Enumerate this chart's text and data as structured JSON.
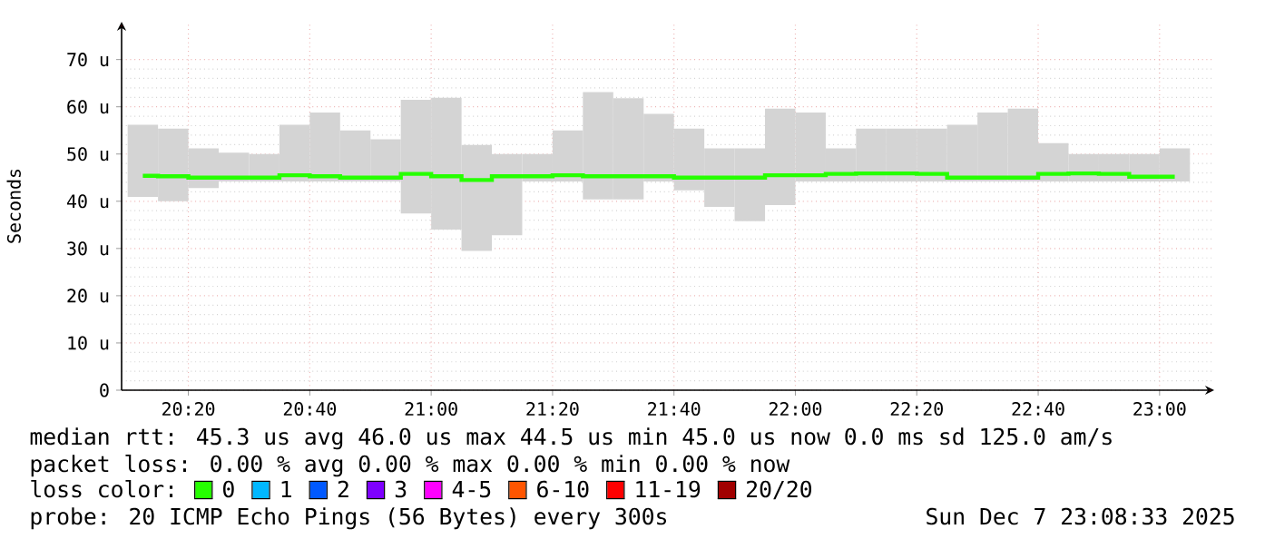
{
  "chart_data": {
    "type": "bar",
    "ylabel": "Seconds",
    "x": [
      20.2083,
      20.2917,
      20.375,
      20.4583,
      20.5417,
      20.625,
      20.7083,
      20.7917,
      20.875,
      20.9583,
      21.0417,
      21.125,
      21.2083,
      21.2917,
      21.375,
      21.4583,
      21.5417,
      21.625,
      21.7083,
      21.7917,
      21.875,
      21.9583,
      22.0417,
      22.125,
      22.2083,
      22.2917,
      22.375,
      22.4583,
      22.5417,
      22.625,
      22.7083,
      22.7917,
      22.875,
      22.9583,
      23.0417
    ],
    "series": [
      {
        "color": "#d4d4d4",
        "base": [
          40.9,
          40.0,
          42.8,
          44.2,
          44.2,
          44.2,
          44.2,
          44.2,
          44.2,
          37.4,
          34.0,
          29.5,
          32.8,
          44.2,
          44.2,
          40.4,
          40.4,
          44.2,
          42.3,
          38.8,
          35.8,
          39.2,
          44.2,
          44.2,
          44.2,
          44.2,
          44.2,
          44.2,
          44.2,
          44.2,
          44.2,
          44.2,
          44.2,
          44.2,
          44.2
        ],
        "values": [
          15.3,
          15.4,
          8.4,
          6.1,
          5.8,
          12.0,
          14.6,
          10.8,
          8.9,
          24.1,
          27.9,
          22.4,
          17.2,
          5.8,
          10.8,
          22.7,
          21.4,
          14.3,
          13.1,
          12.4,
          15.4,
          20.4,
          14.6,
          7.0,
          11.2,
          11.2,
          11.2,
          12.0,
          14.6,
          15.4,
          8.1,
          5.8,
          5.8,
          5.8,
          7.0
        ]
      },
      {
        "type": "step",
        "name": "0",
        "color": "#26ff00",
        "values": [
          45.4,
          45.3,
          45.0,
          45.0,
          45.0,
          45.5,
          45.3,
          45.0,
          45.0,
          45.8,
          45.3,
          44.5,
          45.3,
          45.3,
          45.5,
          45.3,
          45.3,
          45.3,
          45.0,
          45.0,
          45.0,
          45.5,
          45.5,
          45.8,
          45.9,
          45.9,
          45.8,
          45.0,
          45.0,
          45.0,
          45.8,
          45.9,
          45.8,
          45.2,
          45.2
        ]
      },
      {
        "type": "step",
        "name": "1",
        "color": "#00b8ff",
        "values": [
          null,
          null,
          null,
          null,
          null,
          null,
          null,
          null,
          null,
          null,
          null,
          null,
          null,
          null,
          null,
          null,
          null,
          null,
          null,
          null,
          null,
          null,
          null,
          null,
          null,
          null,
          null,
          null,
          null,
          null,
          null,
          null,
          null,
          null,
          null
        ]
      },
      {
        "type": "step",
        "name": "2",
        "color": "#0059ff",
        "values": [
          null,
          null,
          null,
          null,
          null,
          null,
          null,
          null,
          null,
          null,
          null,
          null,
          null,
          null,
          null,
          null,
          null,
          null,
          null,
          null,
          null,
          null,
          null,
          null,
          null,
          null,
          null,
          null,
          null,
          null,
          null,
          null,
          null,
          null,
          null
        ]
      },
      {
        "type": "step",
        "name": "3",
        "color": "#7e00ff",
        "values": [
          null,
          null,
          null,
          null,
          null,
          null,
          null,
          null,
          null,
          null,
          null,
          null,
          null,
          null,
          null,
          null,
          null,
          null,
          null,
          null,
          null,
          null,
          null,
          null,
          null,
          null,
          null,
          null,
          null,
          null,
          null,
          null,
          null,
          null,
          null
        ]
      },
      {
        "type": "step",
        "name": "4-5",
        "color": "#ff00ff",
        "values": [
          null,
          null,
          null,
          null,
          null,
          null,
          null,
          null,
          null,
          null,
          null,
          null,
          null,
          null,
          null,
          null,
          null,
          null,
          null,
          null,
          null,
          null,
          null,
          null,
          null,
          null,
          null,
          null,
          null,
          null,
          null,
          null,
          null,
          null,
          null
        ]
      },
      {
        "type": "step",
        "name": "6-10",
        "color": "#ff5500",
        "values": [
          null,
          null,
          null,
          null,
          null,
          null,
          null,
          null,
          null,
          null,
          null,
          null,
          null,
          null,
          null,
          null,
          null,
          null,
          null,
          null,
          null,
          null,
          null,
          null,
          null,
          null,
          null,
          null,
          null,
          null,
          null,
          null,
          null,
          null,
          null
        ]
      },
      {
        "type": "step",
        "name": "11-19",
        "color": "#ff0000",
        "values": [
          null,
          null,
          null,
          null,
          null,
          null,
          null,
          null,
          null,
          null,
          null,
          null,
          null,
          null,
          null,
          null,
          null,
          null,
          null,
          null,
          null,
          null,
          null,
          null,
          null,
          null,
          null,
          null,
          null,
          null,
          null,
          null,
          null,
          null,
          null
        ]
      },
      {
        "type": "step",
        "name": "20/20",
        "color": "#a10000",
        "values": [
          null,
          null,
          null,
          null,
          null,
          null,
          null,
          null,
          null,
          null,
          null,
          null,
          null,
          null,
          null,
          null,
          null,
          null,
          null,
          null,
          null,
          null,
          null,
          null,
          null,
          null,
          null,
          null,
          null,
          null,
          null,
          null,
          null,
          null,
          null
        ]
      }
    ],
    "xlim": [
      20.15,
      23.15
    ],
    "xticks": [
      {
        "value": 20.3333,
        "label": "20:20"
      },
      {
        "value": 20.6667,
        "label": "20:40"
      },
      {
        "value": 21.0,
        "label": "21:00"
      },
      {
        "value": 21.3333,
        "label": "21:20"
      },
      {
        "value": 21.6667,
        "label": "21:40"
      },
      {
        "value": 22.0,
        "label": "22:00"
      },
      {
        "value": 22.3333,
        "label": "22:20"
      },
      {
        "value": 22.6667,
        "label": "22:40"
      },
      {
        "value": 23.0,
        "label": "23:00"
      }
    ],
    "ylim": [
      0,
      78
    ],
    "yticks": [
      0,
      {
        "value": 10,
        "label": "10 u"
      },
      {
        "value": 20,
        "label": "20 u"
      },
      {
        "value": 30,
        "label": "30 u"
      },
      {
        "value": 40,
        "label": "40 u"
      },
      {
        "value": 50,
        "label": "50 u"
      },
      {
        "value": 60,
        "label": "60 u"
      },
      {
        "value": 70,
        "label": "70 u"
      }
    ],
    "grid": true,
    "legend": "bottom",
    "legend_title": "loss color:",
    "annotations": [
      "median rtt:  45.3 us avg  46.0 us max  44.5 us min  45.0 us now  0.0 ms sd  125.0   am/s",
      "packet loss: 0.00 % avg  0.00 % max  0.00 % min  0.00 % now",
      "probe:       20 ICMP Echo Pings (56 Bytes) every 300s",
      "Sun Dec  7 23:08:33 2025"
    ]
  }
}
